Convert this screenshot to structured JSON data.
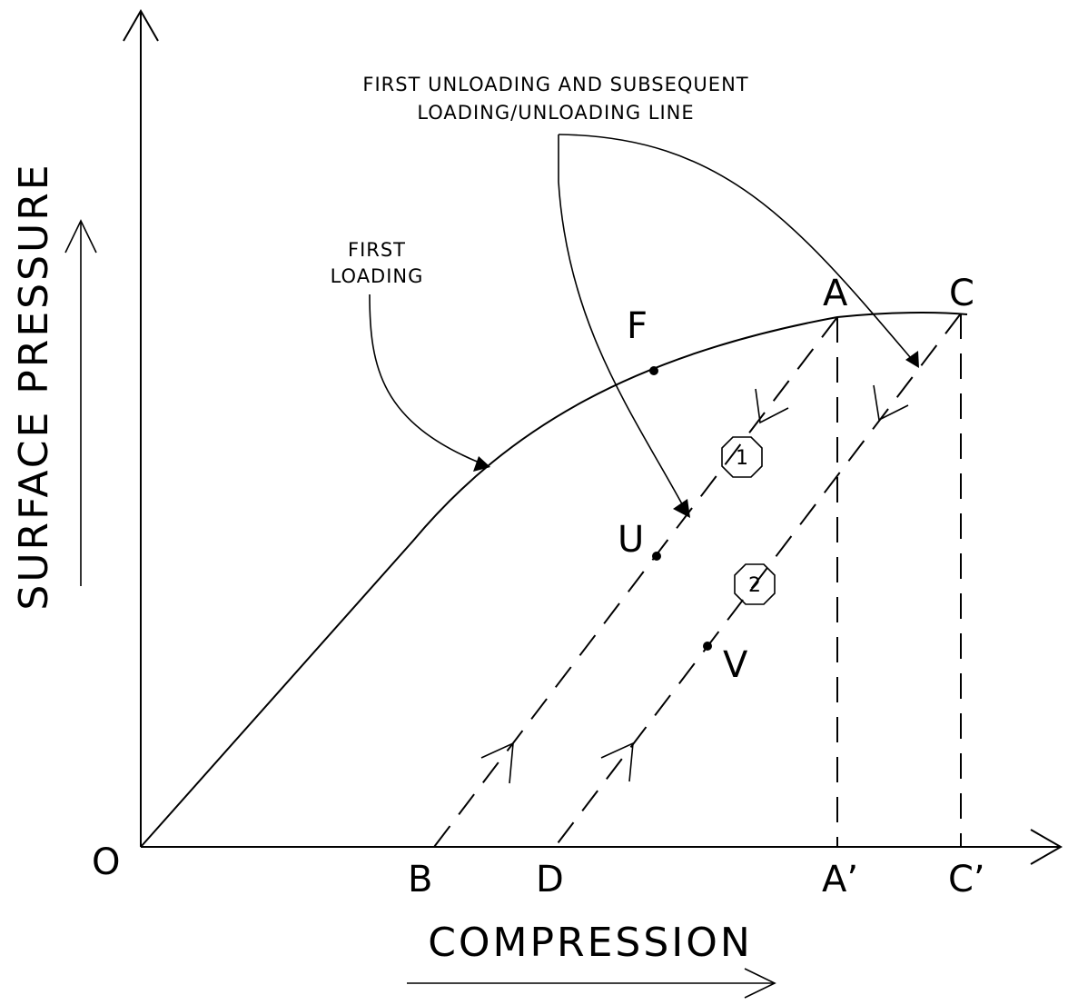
{
  "axes": {
    "x_title": "COMPRESSION",
    "y_title": "SURFACE PRESSURE",
    "origin_label": "O"
  },
  "annotations": {
    "unloading_line_1": "FIRST UNLOADING AND SUBSEQUENT",
    "unloading_line_2": "LOADING/UNLOADING LINE",
    "first_loading_1": "FIRST",
    "first_loading_2": "LOADING"
  },
  "points": {
    "A": "A",
    "C": "C",
    "F": "F",
    "U": "U",
    "V": "V",
    "B": "B",
    "D": "D",
    "A_prime": "A’",
    "C_prime": "C’"
  },
  "markers": {
    "line_1": "1",
    "line_2": "2"
  }
}
